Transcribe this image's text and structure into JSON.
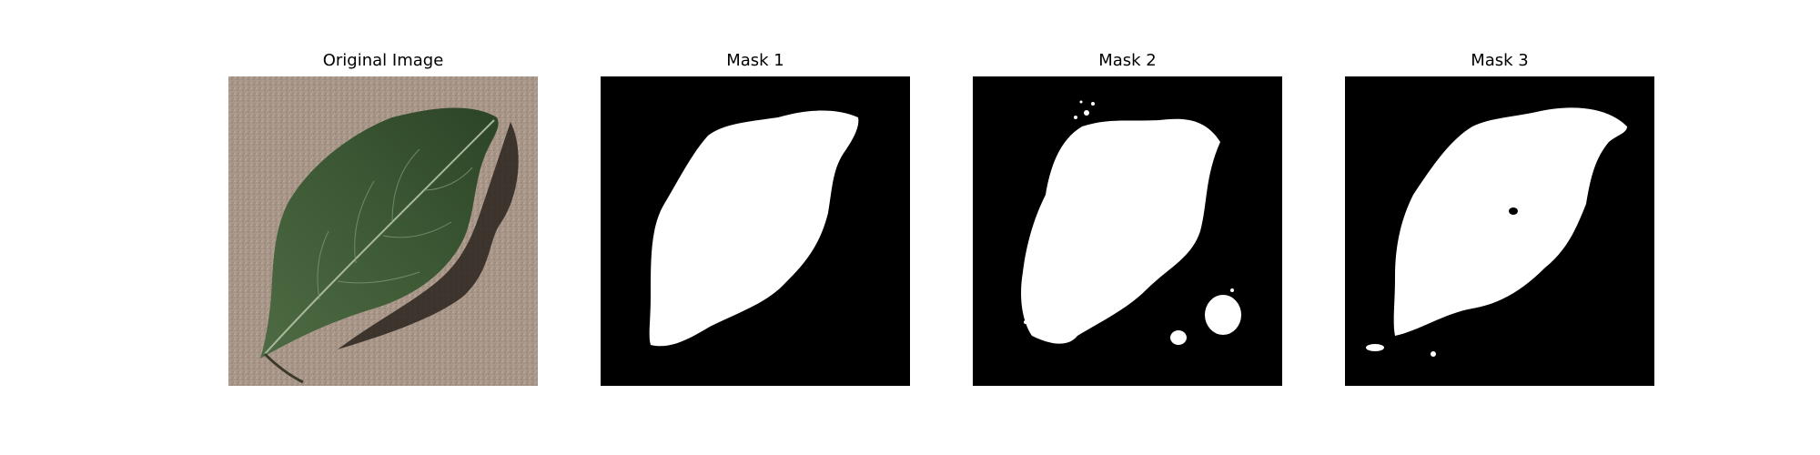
{
  "panels": [
    {
      "title": "Original Image",
      "kind": "photo"
    },
    {
      "title": "Mask 1",
      "kind": "mask"
    },
    {
      "title": "Mask 2",
      "kind": "mask"
    },
    {
      "title": "Mask 3",
      "kind": "mask"
    }
  ],
  "colors": {
    "mask_background": "#000000",
    "mask_foreground": "#ffffff",
    "ground": "#a89688",
    "leaf": "#3d5a35",
    "leaf_highlight": "#6b8a5c",
    "shadow": "#2a231f"
  }
}
